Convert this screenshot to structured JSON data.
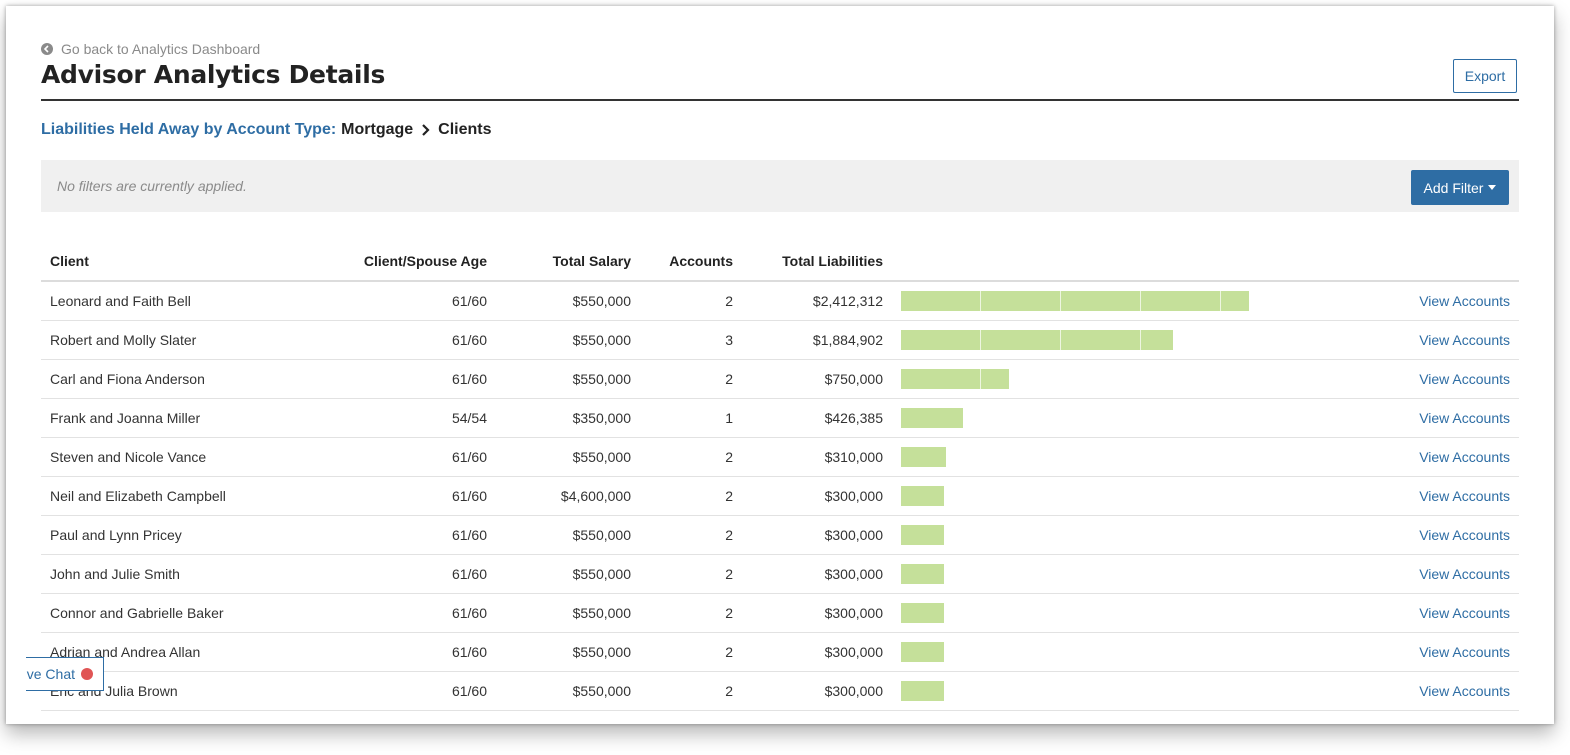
{
  "header": {
    "back_link": "Go back to Analytics Dashboard",
    "title": "Advisor Analytics Details",
    "export_label": "Export"
  },
  "breadcrumb": {
    "link": "Liabilities Held Away by Account Type:",
    "current": "Mortgage",
    "last": "Clients"
  },
  "filters": {
    "empty_text": "No filters are currently applied.",
    "add_filter_label": "Add Filter"
  },
  "table": {
    "columns": [
      "Client",
      "Client/Spouse Age",
      "Total Salary",
      "Accounts",
      "Total Liabilities"
    ],
    "max_liabilities": 2412312,
    "bar_color": "#c5e09a",
    "rows": [
      {
        "client": "Leonard and Faith Bell",
        "age": "61/60",
        "salary": "$550,000",
        "accounts": "2",
        "liabilities": "$2,412,312",
        "amount": 2412312,
        "action": "View Accounts"
      },
      {
        "client": "Robert and Molly Slater",
        "age": "61/60",
        "salary": "$550,000",
        "accounts": "3",
        "liabilities": "$1,884,902",
        "amount": 1884902,
        "action": "View Accounts"
      },
      {
        "client": "Carl and Fiona Anderson",
        "age": "61/60",
        "salary": "$550,000",
        "accounts": "2",
        "liabilities": "$750,000",
        "amount": 750000,
        "action": "View Accounts"
      },
      {
        "client": "Frank and Joanna Miller",
        "age": "54/54",
        "salary": "$350,000",
        "accounts": "1",
        "liabilities": "$426,385",
        "amount": 426385,
        "action": "View Accounts"
      },
      {
        "client": "Steven and Nicole Vance",
        "age": "61/60",
        "salary": "$550,000",
        "accounts": "2",
        "liabilities": "$310,000",
        "amount": 310000,
        "action": "View Accounts"
      },
      {
        "client": "Neil and Elizabeth Campbell",
        "age": "61/60",
        "salary": "$4,600,000",
        "accounts": "2",
        "liabilities": "$300,000",
        "amount": 300000,
        "action": "View Accounts"
      },
      {
        "client": "Paul and Lynn Pricey",
        "age": "61/60",
        "salary": "$550,000",
        "accounts": "2",
        "liabilities": "$300,000",
        "amount": 300000,
        "action": "View Accounts"
      },
      {
        "client": "John and Julie Smith",
        "age": "61/60",
        "salary": "$550,000",
        "accounts": "2",
        "liabilities": "$300,000",
        "amount": 300000,
        "action": "View Accounts"
      },
      {
        "client": "Connor and Gabrielle Baker",
        "age": "61/60",
        "salary": "$550,000",
        "accounts": "2",
        "liabilities": "$300,000",
        "amount": 300000,
        "action": "View Accounts"
      },
      {
        "client": "Adrian and Andrea Allan",
        "age": "61/60",
        "salary": "$550,000",
        "accounts": "2",
        "liabilities": "$300,000",
        "amount": 300000,
        "action": "View Accounts"
      },
      {
        "client": "Eric and Julia Brown",
        "age": "61/60",
        "salary": "$550,000",
        "accounts": "2",
        "liabilities": "$300,000",
        "amount": 300000,
        "action": "View Accounts"
      }
    ]
  },
  "live_chat": {
    "label": "ive Chat",
    "status_color": "#e05555"
  }
}
